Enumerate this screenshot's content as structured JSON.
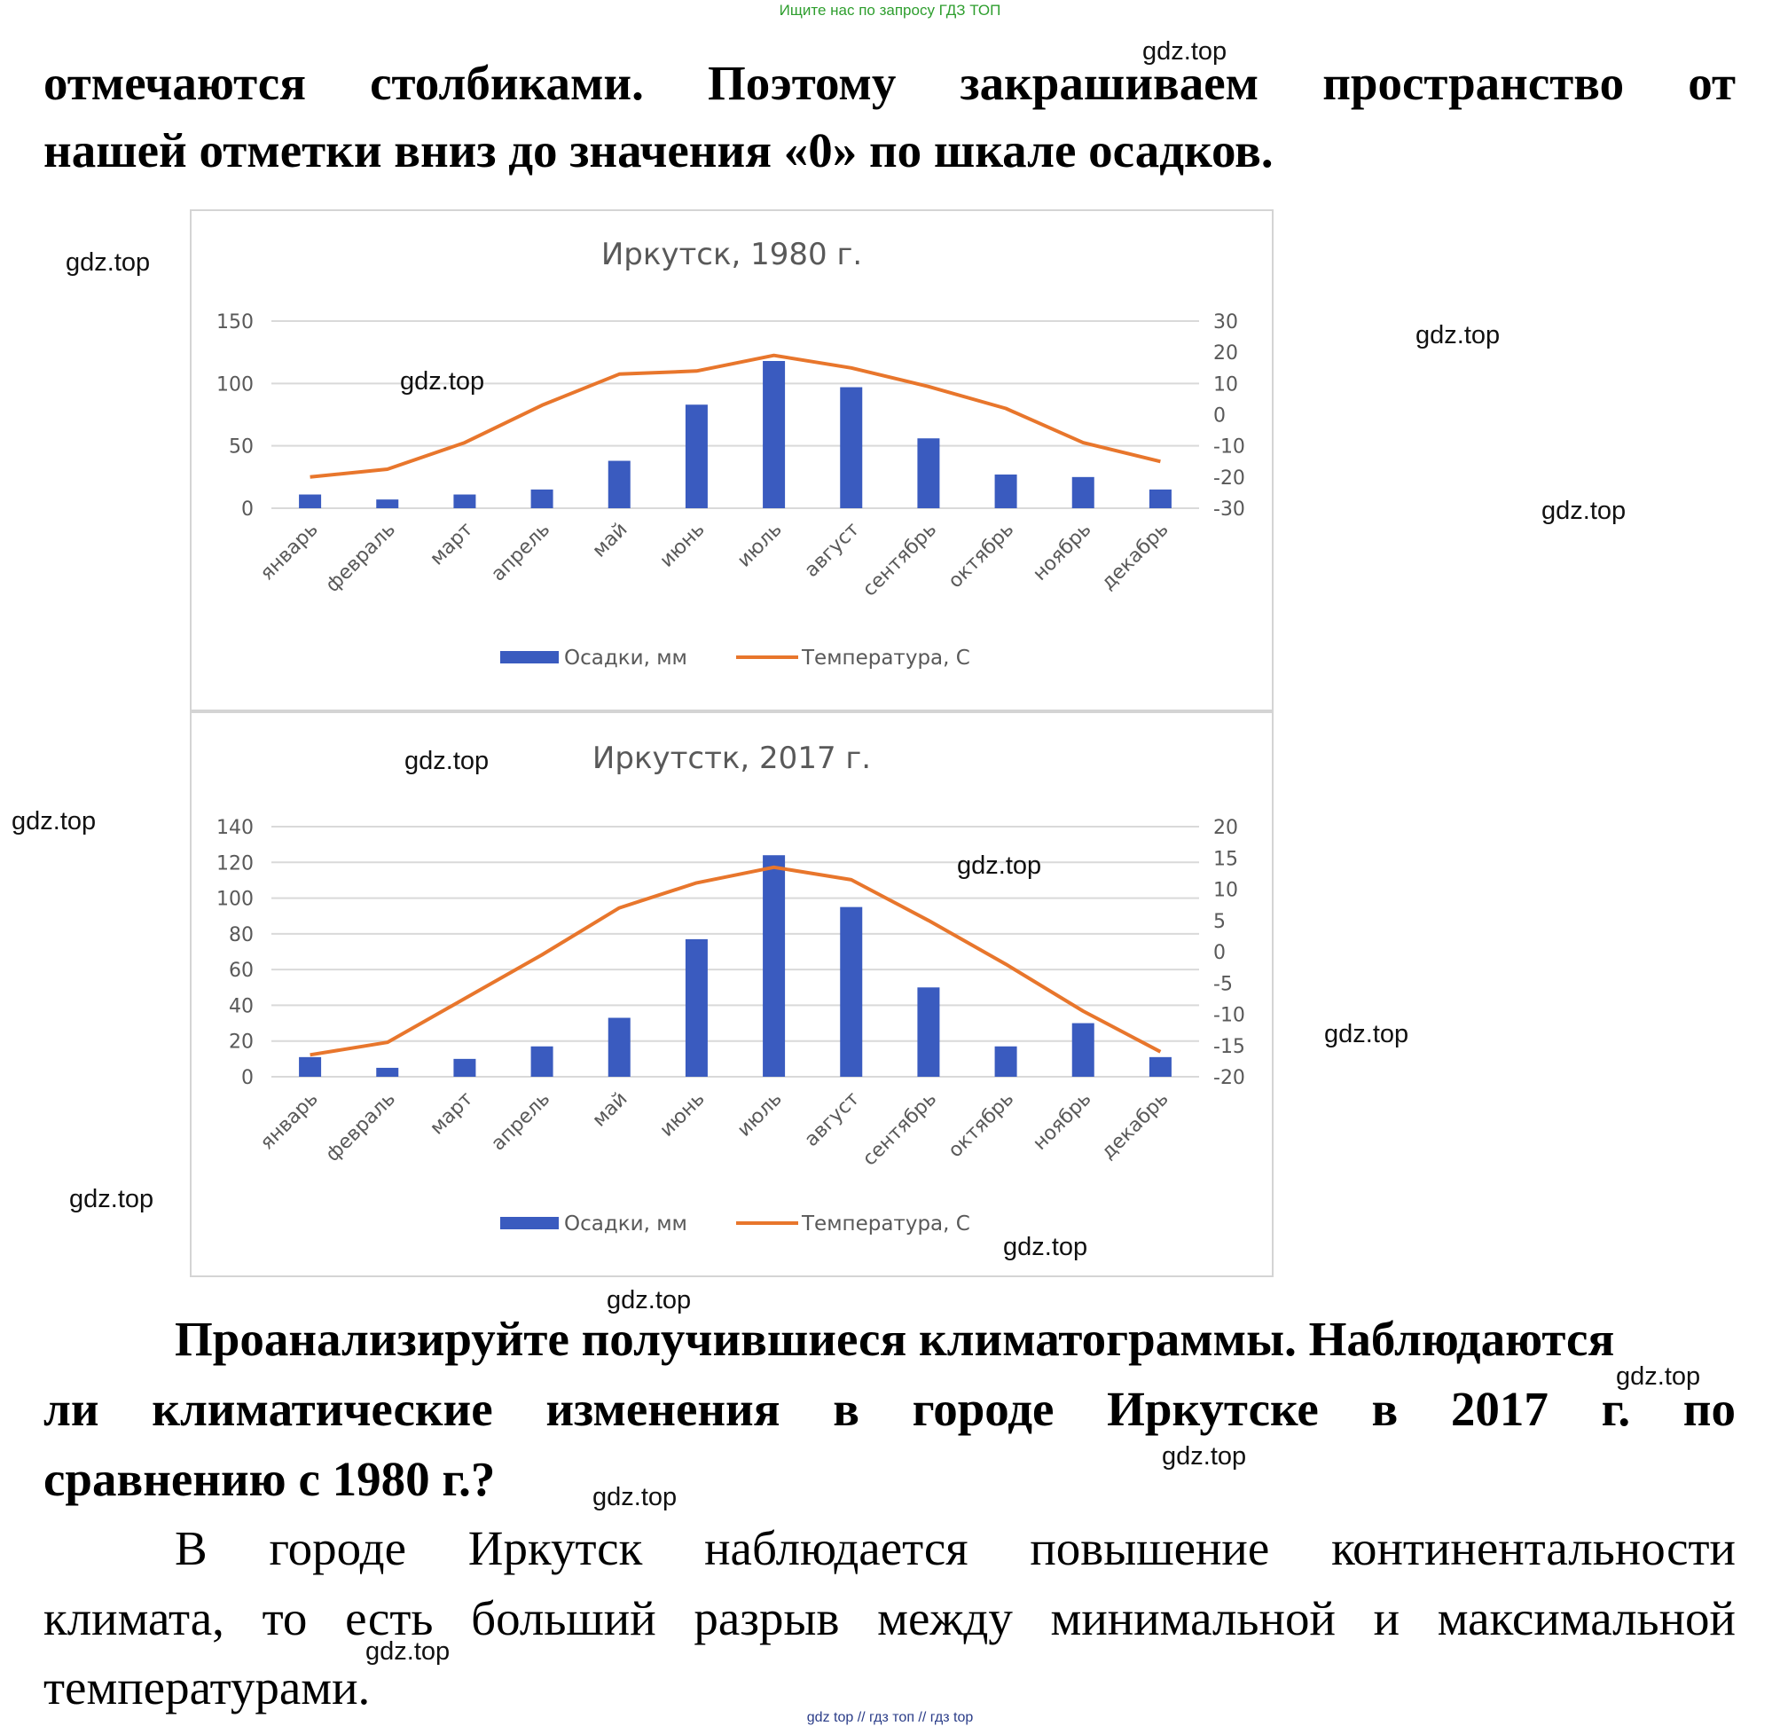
{
  "header": {
    "search_hint": "Ищите нас по запросу ГДЗ ТОП"
  },
  "text": {
    "p1_line1": "отмечаются столбиками. Поэтому закрашиваем пространство от",
    "p1_line2": "нашей отметки вниз до значения «0» по шкале осадков.",
    "question_line1": "Проанализируйте получившиеся климатограммы. Наблюдаются",
    "question_line2": "ли климатические изменения в городе Иркутске в 2017 г. по",
    "question_line3": "сравнению с 1980 г.?",
    "answer_line1": "В городе Иркутск наблюдается повышение континентальности",
    "answer_line2": "климата, то есть больший разрыв между минимальной и максимальной",
    "answer_line3": "температурами."
  },
  "watermark": "gdz.top",
  "footer": "gdz top  //  гдз топ  //  гдз top",
  "colors": {
    "bar": "#3a5bbf",
    "line": "#e8762c",
    "grid": "#d9d9d9",
    "axis_text": "#595959",
    "title": "#595959"
  },
  "chart_data": [
    {
      "type": "bar+line",
      "title": "Иркутск, 1980  г.",
      "categories": [
        "январь",
        "февраль",
        "март",
        "апрель",
        "май",
        "июнь",
        "июль",
        "август",
        "сентябрь",
        "октябрь",
        "ноябрь",
        "декабрь"
      ],
      "series": [
        {
          "name": "Осадки, мм",
          "type": "bar",
          "axis": "left",
          "values": [
            11,
            7,
            11,
            15,
            38,
            83,
            118,
            97,
            56,
            27,
            25,
            15
          ]
        },
        {
          "name": "Температура, С",
          "type": "line",
          "axis": "right",
          "values": [
            -20,
            -17.5,
            -9,
            3,
            13,
            14,
            19,
            15,
            9,
            2,
            -9,
            -15
          ]
        }
      ],
      "left_axis": {
        "min": 0,
        "max": 150,
        "ticks": [
          0,
          50,
          100,
          150
        ]
      },
      "right_axis": {
        "min": -30,
        "max": 30,
        "ticks": [
          -30,
          -20,
          -10,
          0,
          10,
          20,
          30
        ]
      },
      "legend": [
        "Осадки, мм",
        "Температура, С"
      ],
      "legend_position": "bottom"
    },
    {
      "type": "bar+line",
      "title": "Иркутстк, 2017  г.",
      "categories": [
        "январь",
        "февраль",
        "март",
        "апрель",
        "май",
        "июнь",
        "июль",
        "август",
        "сентябрь",
        "октябрь",
        "ноябрь",
        "декабрь"
      ],
      "series": [
        {
          "name": "Осадки, мм",
          "type": "bar",
          "axis": "left",
          "values": [
            11,
            5,
            10,
            17,
            33,
            77,
            124,
            95,
            50,
            17,
            30,
            11
          ]
        },
        {
          "name": "Температура, С",
          "type": "line",
          "axis": "right",
          "values": [
            -16.5,
            -14.5,
            -7.5,
            -0.5,
            7,
            11,
            13.5,
            11.5,
            5,
            -2,
            -9.5,
            -16
          ]
        }
      ],
      "left_axis": {
        "min": 0,
        "max": 140,
        "ticks": [
          0,
          20,
          40,
          60,
          80,
          100,
          120,
          140
        ]
      },
      "right_axis": {
        "min": -20,
        "max": 20,
        "ticks": [
          -20,
          -15,
          -10,
          -5,
          0,
          5,
          10,
          15,
          20
        ]
      },
      "legend": [
        "Осадки, мм",
        "Температура, С"
      ],
      "legend_position": "bottom"
    }
  ]
}
